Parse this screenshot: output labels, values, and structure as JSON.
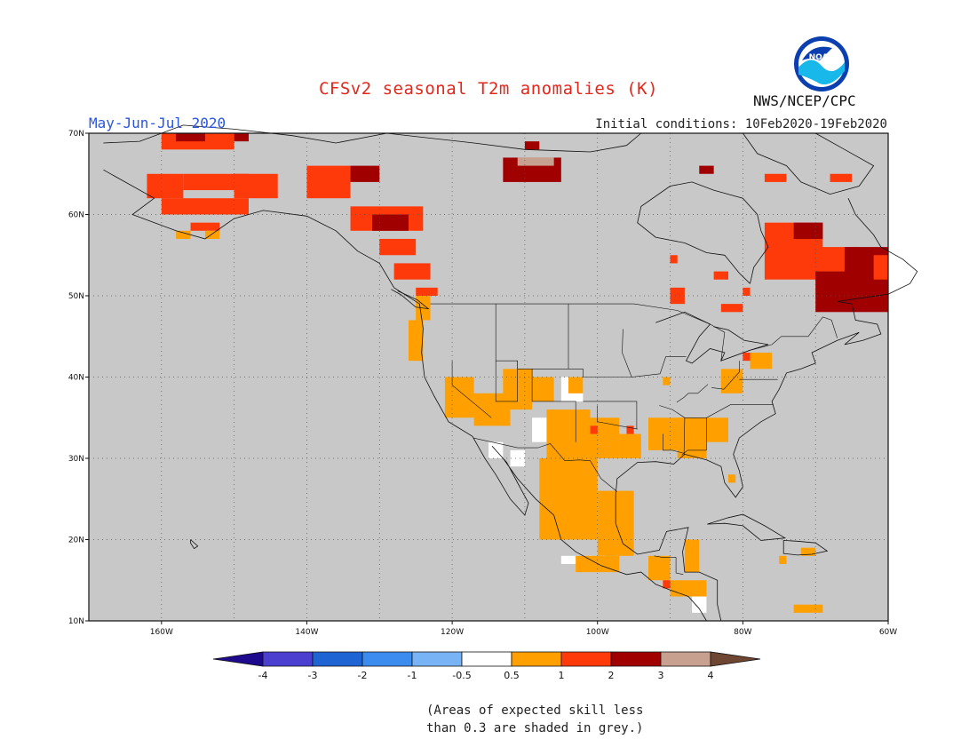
{
  "title": "CFSv2 seasonal T2m anomalies (K)",
  "season": "May-Jun-Jul 2020",
  "initial_conditions": "Initial conditions: 10Feb2020-19Feb2020",
  "agency": "NWS/NCEP/CPC",
  "logo_text": "NOAA",
  "skill_note_line1": "(Areas of expected skill less",
  "skill_note_line2": "than 0.3 are shaded in grey.)",
  "map": {
    "lon_range": [
      -170,
      -60
    ],
    "lat_range": [
      10,
      70
    ],
    "lat_labels": [
      "10N",
      "20N",
      "30N",
      "40N",
      "50N",
      "60N",
      "70N"
    ],
    "lon_labels": [
      "160W",
      "140W",
      "120W",
      "100W",
      "80W",
      "60W"
    ],
    "grid": "dotted",
    "background_color": "#c8c8c8",
    "regions": [
      {
        "name": "Alaska",
        "category": "1-2",
        "color": "#ff3a0a"
      },
      {
        "name": "Western Canada",
        "category": "1-2",
        "color": "#ff3a0a"
      },
      {
        "name": "Northern Quebec / Labrador",
        "category": "2-3",
        "color": "#a00000"
      },
      {
        "name": "US Southwest",
        "category": "0.5-1",
        "color": "#ffa000"
      },
      {
        "name": "Mexico",
        "category": "0.5-1",
        "color": "#ffa000"
      },
      {
        "name": "US Southeast",
        "category": "0.5-1",
        "color": "#ffa000"
      }
    ]
  },
  "colorbar": {
    "labels": [
      "-4",
      "-3",
      "-2",
      "-1",
      "-0.5",
      "0.5",
      "1",
      "2",
      "3",
      "4"
    ],
    "colors": [
      "#1e0a8c",
      "#4a3fcf",
      "#1e64d2",
      "#3c8cf0",
      "#78b4f5",
      "#ffffff",
      "#ffa000",
      "#ff3a0a",
      "#a00000",
      "#c8a090",
      "#6e4632"
    ]
  }
}
